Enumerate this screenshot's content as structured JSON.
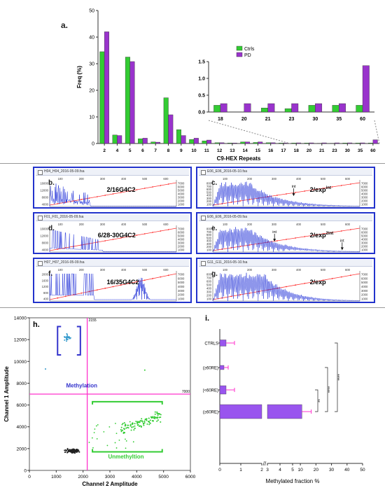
{
  "panels": {
    "a": "a.",
    "b": "b.",
    "c": "c.",
    "d": "d.",
    "e": "e.",
    "f": "f.",
    "g": "g.",
    "h": "h.",
    "i": "i."
  },
  "colors": {
    "ctrls": "#33cc33",
    "pd": "#9933cc",
    "trace": "#1f2fd8",
    "calib": "#ff3333",
    "frame": "#2233cc",
    "threshold": "#ff33cc",
    "methyl_text": "#3333cc",
    "unmethyl_text": "#33cc33",
    "bar_i": "#9955ee"
  },
  "chart_data": [
    {
      "id": "a",
      "type": "bar",
      "xlabel": "C9-HEX Repeats",
      "ylabel": "Freq (%)",
      "ylim": [
        0,
        50
      ],
      "yticks": [
        0,
        10,
        20,
        30,
        40,
        50
      ],
      "categories": [
        "2",
        "4",
        "5",
        "6",
        "7",
        "8",
        "9",
        "10",
        "11",
        "12",
        "13",
        "14",
        "15",
        "16",
        "17",
        "18",
        "20",
        "21",
        "23",
        "30",
        "35",
        "60"
      ],
      "series": [
        {
          "name": "Ctrls",
          "values": [
            34.5,
            3.2,
            32.5,
            1.8,
            0.6,
            17.2,
            5.2,
            1.5,
            1.0,
            0.3,
            0.2,
            0.6,
            0.4,
            0.3,
            0.2,
            0.2,
            0.2,
            0.1,
            0.1,
            0.2,
            0.2,
            0.2
          ]
        },
        {
          "name": "PD",
          "values": [
            42.0,
            3.0,
            30.8,
            2.0,
            0.5,
            10.8,
            3.0,
            2.0,
            1.3,
            0.3,
            0.2,
            0.6,
            0.6,
            0.3,
            0.2,
            0.25,
            0.25,
            0.25,
            0.25,
            0.25,
            0.25,
            1.4
          ]
        }
      ],
      "legend": "top-right",
      "inset": {
        "categories": [
          "18",
          "20",
          "21",
          "23",
          "30",
          "35",
          "60"
        ],
        "ylim": [
          0,
          1.5
        ],
        "yticks": [
          "0.0",
          "0.5",
          "1.0",
          "1.5"
        ],
        "series": [
          {
            "name": "Ctrls",
            "values": [
              0.2,
              0.0,
              0.12,
              0.1,
              0.2,
              0.2,
              0.2
            ]
          },
          {
            "name": "PD",
            "values": [
              0.25,
              0.25,
              0.25,
              0.25,
              0.25,
              0.25,
              1.38
            ]
          }
        ]
      }
    },
    {
      "id": "traces",
      "type": "line",
      "windows": [
        {
          "id": "b",
          "title": "H04_H04_2016-05-09.fsa",
          "label": "2/16G4C2",
          "sup": "",
          "yticks": [
            "16000",
            "12000",
            "8000",
            "4000"
          ],
          "pattern": "early",
          "arrows": []
        },
        {
          "id": "c",
          "title": "E06_E06_2016-05-10.fsa",
          "label": "2/exp",
          "sup": "int",
          "yticks": [
            "800",
            "700",
            "600",
            "500",
            "400",
            "300",
            "200",
            "100"
          ],
          "pattern": "expdense",
          "arrows": [
            "int"
          ]
        },
        {
          "id": "d",
          "title": "F01_F01_2016-05-09.fsa",
          "label": "6/28-30G4C2",
          "sup": "",
          "yticks": [
            "16000",
            "12000",
            "8000",
            "4000"
          ],
          "pattern": "mid",
          "arrows": []
        },
        {
          "id": "e",
          "title": "E06_E06_2016-05-09.fsa",
          "label": "2/exp",
          "sup": "2int",
          "yticks": [
            "800",
            "700",
            "600",
            "500",
            "400",
            "300",
            "200",
            "100"
          ],
          "pattern": "expdense2",
          "arrows": [
            "int",
            "int"
          ]
        },
        {
          "id": "f",
          "title": "H07_H07_2016-05-09.fsa",
          "label": "16/35G4C2",
          "sup": "",
          "yticks": [
            "2000",
            "1600",
            "1200",
            "800",
            "400"
          ],
          "pattern": "peak",
          "arrows": []
        },
        {
          "id": "g",
          "title": "G11_G11_2016-05-10.fsa",
          "label": "2/exp",
          "sup": "",
          "yticks": [
            "800",
            "700",
            "600",
            "500",
            "400",
            "300",
            "200",
            "100"
          ],
          "pattern": "expwide",
          "arrows": []
        }
      ],
      "xticks": [
        "100",
        "200",
        "300",
        "400",
        "500",
        "600"
      ],
      "right_ticks": [
        "7000",
        "6000",
        "5000",
        "4000",
        "3000",
        "2000",
        "1000"
      ]
    },
    {
      "id": "h",
      "type": "scatter",
      "xlabel": "Channel 2 Amplitude",
      "ylabel": "Channel 1 Amplitude",
      "xlim": [
        0,
        6000
      ],
      "ylim": [
        0,
        14000
      ],
      "xticks": [
        "0",
        "1000",
        "2000",
        "3000",
        "4000",
        "5000",
        "6000"
      ],
      "yticks": [
        "0",
        "2000",
        "4000",
        "6000",
        "8000",
        "10000",
        "12000",
        "14000"
      ],
      "threshold_x": 2155,
      "threshold_y": 7000,
      "threshold_x_label": "2155",
      "threshold_y_label": "7000",
      "methylation_label": "Methylation",
      "unmethylation_label": "Unmethyltion"
    },
    {
      "id": "i",
      "type": "bar",
      "orientation": "horizontal",
      "xlabel": "Methylated fraction %",
      "categories": [
        "CTRLS",
        "PD(≥60RE)",
        "PD(<60RE)",
        "ALS (≥60RE)"
      ],
      "values": [
        0.3,
        0.2,
        0.3,
        11
      ],
      "errors": [
        0.4,
        0.2,
        0.4,
        6
      ],
      "xticks_left": [
        "0",
        "1",
        "2"
      ],
      "xticks_right": [
        "3",
        "4",
        "5",
        "10",
        "20",
        "30",
        "40",
        "50"
      ],
      "significance": [
        "****",
        "****",
        "**"
      ]
    }
  ]
}
